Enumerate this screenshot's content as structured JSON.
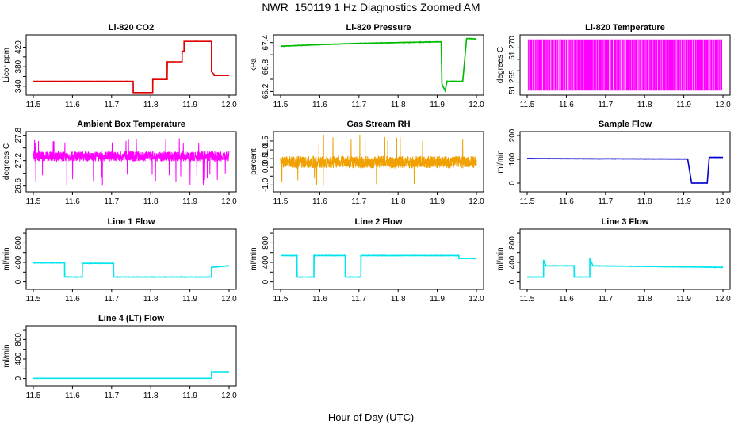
{
  "figure": {
    "title": "NWR_150119  1 Hz Diagnostics Zoomed AM",
    "xlabel": "Hour of Day (UTC)"
  },
  "chart_data": [
    {
      "type": "line",
      "title": "Li-820 CO2",
      "ylabel": "Licor ppm",
      "color": "#e00000",
      "xlim": [
        11.5,
        12.0
      ],
      "xticks": [
        "11.5",
        "11.6",
        "11.7",
        "11.8",
        "11.9",
        "12.0"
      ],
      "ylim": [
        325,
        442
      ],
      "yticks": [
        340,
        360,
        380,
        400,
        420
      ],
      "ytick_labels": [
        "340",
        "",
        "380",
        "",
        "420"
      ],
      "series": [
        {
          "name": "CO2",
          "points": [
            [
              11.5,
              350
            ],
            [
              11.755,
              350
            ],
            [
              11.755,
              327
            ],
            [
              11.805,
              327
            ],
            [
              11.805,
              354
            ],
            [
              11.842,
              354
            ],
            [
              11.842,
              375
            ],
            [
              11.842,
              390
            ],
            [
              11.88,
              390
            ],
            [
              11.88,
              412
            ],
            [
              11.885,
              412
            ],
            [
              11.885,
              432
            ],
            [
              11.955,
              432
            ],
            [
              11.955,
              370
            ],
            [
              11.962,
              364
            ],
            [
              11.962,
              362
            ],
            [
              12.0,
              362
            ]
          ],
          "noise": 0.5
        }
      ]
    },
    {
      "type": "line",
      "title": "Li-820 Pressure",
      "ylabel": "kPa",
      "color": "#00bb00",
      "xlim": [
        11.5,
        12.0
      ],
      "xticks": [
        "11.5",
        "11.6",
        "11.7",
        "11.8",
        "11.9",
        "12.0"
      ],
      "ylim": [
        66.15,
        67.55
      ],
      "yticks": [
        66.2,
        66.5,
        66.8,
        67.1,
        67.4
      ],
      "ytick_labels": [
        "66.2",
        "",
        "66.8",
        "",
        "67.4"
      ],
      "series": [
        {
          "name": "Pressure",
          "points": [
            [
              11.5,
              67.31
            ],
            [
              11.6,
              67.35
            ],
            [
              11.7,
              67.38
            ],
            [
              11.8,
              67.4
            ],
            [
              11.91,
              67.42
            ],
            [
              11.912,
              66.38
            ],
            [
              11.92,
              66.22
            ],
            [
              11.925,
              66.45
            ],
            [
              11.965,
              66.45
            ],
            [
              11.975,
              67.5
            ],
            [
              12.0,
              67.49
            ]
          ],
          "noise": 0.012
        }
      ]
    },
    {
      "type": "line",
      "title": "Li-820 Temperature",
      "ylabel": "degrees C",
      "color": "#ff00ff",
      "xlim": [
        11.5,
        12.0
      ],
      "xticks": [
        "11.5",
        "11.6",
        "11.7",
        "11.8",
        "11.9",
        "12.0"
      ],
      "ylim": [
        51.25,
        51.275
      ],
      "yticks": [
        51.255,
        51.26,
        51.265,
        51.27
      ],
      "ytick_labels": [
        "51.255",
        "",
        "",
        "51.270"
      ],
      "series": [
        {
          "name": "Temperature",
          "levels": [
            51.2515,
            51.2735
          ],
          "switches": 260
        }
      ]
    },
    {
      "type": "line",
      "title": "Ambient Box Temperature",
      "ylabel": "degrees C",
      "color": "#ff00ff",
      "xlim": [
        11.5,
        12.0
      ],
      "xticks": [
        "11.5",
        "11.6",
        "11.7",
        "11.8",
        "11.9",
        "12.0"
      ],
      "ylim": [
        26.5,
        27.85
      ],
      "yticks": [
        26.6,
        26.9,
        27.2,
        27.5,
        27.8
      ],
      "ytick_labels": [
        "26.6",
        "",
        "27.2",
        "",
        "27.8"
      ],
      "series": [
        {
          "name": "Box Temp",
          "center": 27.3,
          "noise": 0.12,
          "spikes_down": 26.6,
          "spikes_up": 27.75
        }
      ]
    },
    {
      "type": "line",
      "title": "Gas Stream RH",
      "ylabel": "percent",
      "color": "#f0a000",
      "xlim": [
        11.5,
        12.0
      ],
      "xticks": [
        "11.5",
        "11.6",
        "11.7",
        "11.8",
        "11.9",
        "12.0"
      ],
      "ylim": [
        -1.3,
        1.95
      ],
      "yticks": [
        -1.0,
        -0.5,
        0.0,
        0.5,
        1.0,
        1.5
      ],
      "ytick_labels": [
        "-1.0",
        "",
        "0.0",
        "0.5",
        "1.0",
        "1.5"
      ],
      "series": [
        {
          "name": "RH",
          "center": 0.3,
          "noise": 0.35,
          "spike_max": 1.9,
          "spike_min": -1.1
        }
      ]
    },
    {
      "type": "line",
      "title": "Sample Flow",
      "ylabel": "ml/min",
      "color": "#0000cc",
      "xlim": [
        11.5,
        12.0
      ],
      "xticks": [
        "11.5",
        "11.6",
        "11.7",
        "11.8",
        "11.9",
        "12.0"
      ],
      "ylim": [
        -30,
        210
      ],
      "yticks": [
        0,
        100,
        200
      ],
      "ytick_labels": [
        "0",
        "100",
        "200"
      ],
      "series": [
        {
          "name": "Sample Flow",
          "points": [
            [
              11.5,
              103
            ],
            [
              11.91,
              101
            ],
            [
              11.92,
              0
            ],
            [
              11.96,
              0
            ],
            [
              11.965,
              108
            ],
            [
              12.0,
              108
            ]
          ],
          "noise": 1.5
        }
      ]
    },
    {
      "type": "line",
      "title": "Line 1 Flow",
      "ylabel": "ml/min",
      "color": "#00e5ee",
      "xlim": [
        11.5,
        12.0
      ],
      "xticks": [
        "11.5",
        "11.6",
        "11.7",
        "11.8",
        "11.9",
        "12.0"
      ],
      "ylim": [
        -120,
        1050
      ],
      "yticks": [
        0,
        200,
        400,
        600,
        800,
        1000
      ],
      "ytick_labels": [
        "0",
        "",
        "400",
        "",
        "800",
        ""
      ],
      "series": [
        {
          "name": "Line 1",
          "points": [
            [
              11.5,
              390
            ],
            [
              11.58,
              390
            ],
            [
              11.58,
              100
            ],
            [
              11.625,
              100
            ],
            [
              11.625,
              380
            ],
            [
              11.705,
              380
            ],
            [
              11.705,
              100
            ],
            [
              11.955,
              100
            ],
            [
              11.955,
              300
            ],
            [
              12.0,
              330
            ]
          ],
          "noise": 10
        }
      ]
    },
    {
      "type": "line",
      "title": "Line 2 Flow",
      "ylabel": "ml/min",
      "color": "#00e5ee",
      "xlim": [
        11.5,
        12.0
      ],
      "xticks": [
        "11.5",
        "11.6",
        "11.7",
        "11.8",
        "11.9",
        "12.0"
      ],
      "ylim": [
        -120,
        1050
      ],
      "yticks": [
        0,
        200,
        400,
        600,
        800,
        1000
      ],
      "ytick_labels": [
        "0",
        "",
        "400",
        "",
        "800",
        ""
      ],
      "series": [
        {
          "name": "Line 2",
          "points": [
            [
              11.5,
              540
            ],
            [
              11.542,
              540
            ],
            [
              11.542,
              100
            ],
            [
              11.585,
              100
            ],
            [
              11.585,
              540
            ],
            [
              11.665,
              540
            ],
            [
              11.665,
              100
            ],
            [
              11.705,
              100
            ],
            [
              11.705,
              540
            ],
            [
              11.955,
              540
            ],
            [
              11.955,
              480
            ],
            [
              12.0,
              480
            ]
          ],
          "noise": 10
        }
      ]
    },
    {
      "type": "line",
      "title": "Line 3 Flow",
      "ylabel": "ml/min",
      "color": "#00e5ee",
      "xlim": [
        11.5,
        12.0
      ],
      "xticks": [
        "11.5",
        "11.6",
        "11.7",
        "11.8",
        "11.9",
        "12.0"
      ],
      "ylim": [
        -120,
        1050
      ],
      "yticks": [
        0,
        200,
        400,
        600,
        800,
        1000
      ],
      "ytick_labels": [
        "0",
        "",
        "400",
        "",
        "800",
        ""
      ],
      "series": [
        {
          "name": "Line 3",
          "points": [
            [
              11.5,
              100
            ],
            [
              11.542,
              100
            ],
            [
              11.542,
              450
            ],
            [
              11.548,
              330
            ],
            [
              11.62,
              330
            ],
            [
              11.62,
              100
            ],
            [
              11.66,
              100
            ],
            [
              11.66,
              480
            ],
            [
              11.668,
              330
            ],
            [
              11.99,
              300
            ],
            [
              12.0,
              300
            ]
          ],
          "noise": 10
        }
      ]
    },
    {
      "type": "line",
      "title": "Line 4 (LT) Flow",
      "ylabel": "ml/min",
      "color": "#00e5ee",
      "xlim": [
        11.5,
        12.0
      ],
      "xticks": [
        "11.5",
        "11.6",
        "11.7",
        "11.8",
        "11.9",
        "12.0"
      ],
      "ylim": [
        -120,
        1050
      ],
      "yticks": [
        0,
        200,
        400,
        600,
        800,
        1000
      ],
      "ytick_labels": [
        "0",
        "",
        "400",
        "",
        "800",
        ""
      ],
      "series": [
        {
          "name": "Line 4",
          "points": [
            [
              11.5,
              5
            ],
            [
              11.955,
              5
            ],
            [
              11.955,
              140
            ],
            [
              12.0,
              140
            ]
          ],
          "noise": 2
        }
      ]
    }
  ]
}
